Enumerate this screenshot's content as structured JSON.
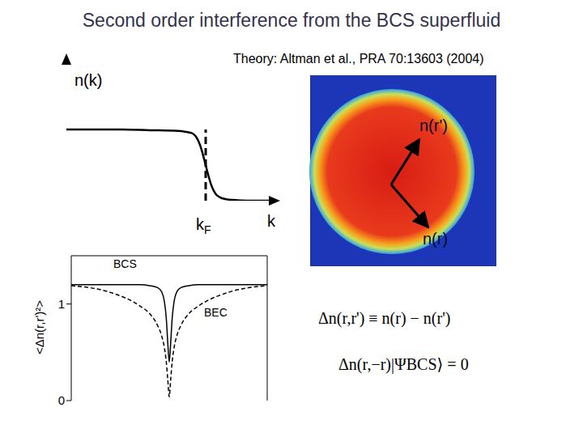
{
  "title": "Second order interference from the BCS superfluid",
  "reference": "Theory: Altman et al., PRA 70:13603 (2004)",
  "chart_data": [
    {
      "type": "line",
      "y_label": "n(k)",
      "x_label": "k",
      "x": [
        0,
        0.2,
        0.4,
        0.6,
        0.8,
        0.85,
        0.9,
        0.93,
        0.96,
        0.98,
        1.0,
        1.02,
        1.04,
        1.07,
        1.1,
        1.15,
        1.2,
        1.3,
        1.4,
        1.5
      ],
      "values": [
        1,
        1,
        1,
        0.99,
        0.98,
        0.97,
        0.95,
        0.9,
        0.78,
        0.65,
        0.5,
        0.35,
        0.22,
        0.1,
        0.05,
        0.02,
        0.01,
        0,
        0,
        0
      ],
      "color": "#000000",
      "xlim": [
        0,
        1.5
      ],
      "ylim": [
        0,
        2
      ],
      "xticks": [],
      "yticks": [],
      "tick_labels": false,
      "annotations": [
        {
          "text": "kF",
          "x": 1
        }
      ]
    },
    {
      "type": "line",
      "y_label": "<Δn(r,r')²>",
      "x": [
        -1,
        -0.6,
        -0.3,
        -0.2,
        -0.12,
        -0.08,
        -0.05,
        -0.03,
        -0.015,
        0,
        0.015,
        0.03,
        0.05,
        0.08,
        0.12,
        0.2,
        0.3,
        0.6,
        1
      ],
      "series": [
        {
          "name": "BCS",
          "color": "#000000",
          "line_style": "solid",
          "values": [
            1.2,
            1.2,
            1.2,
            1.19,
            1.17,
            1.13,
            1.03,
            0.85,
            0.6,
            0.4,
            0.6,
            0.85,
            1.03,
            1.13,
            1.17,
            1.19,
            1.2,
            1.2,
            1.2
          ]
        },
        {
          "name": "BEC",
          "color": "#000000",
          "line_style": "dashed",
          "values": [
            1.19,
            1.12,
            0.98,
            0.9,
            0.78,
            0.68,
            0.55,
            0.4,
            0.22,
            0.04,
            0.22,
            0.4,
            0.55,
            0.68,
            0.78,
            0.9,
            0.98,
            1.12,
            1.19
          ]
        }
      ],
      "xlim": [
        -1,
        1
      ],
      "ylim": [
        0,
        1.5
      ],
      "xticks": [],
      "yticks": [
        0,
        1
      ],
      "tick_labels": "y"
    }
  ],
  "image": {
    "labels": [
      "n(r')",
      "n(r)"
    ]
  },
  "equations": [
    "Δn(r,r') ≡ n(r) − n(r')",
    "Δn(r,−r)|ΨBCS⟩ = 0"
  ]
}
